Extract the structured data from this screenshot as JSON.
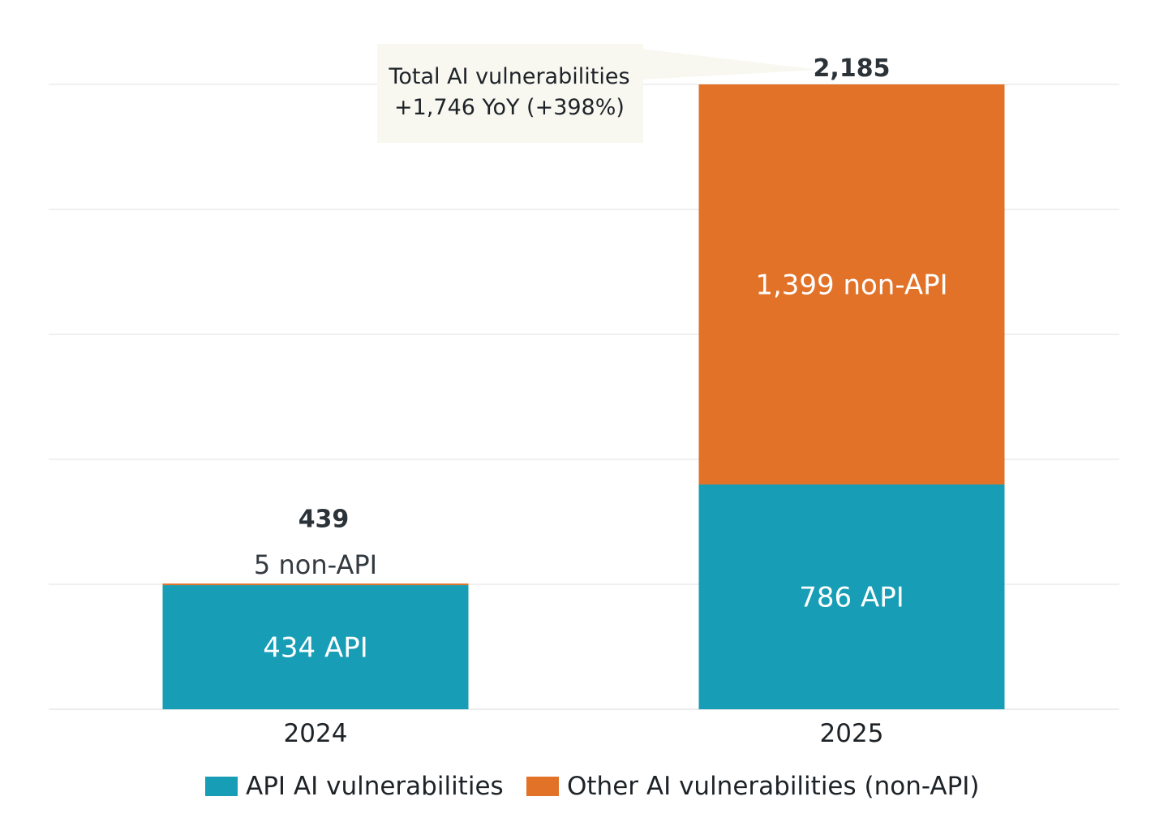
{
  "chart_data": {
    "type": "bar",
    "stacked": true,
    "categories": [
      "2024",
      "2025"
    ],
    "series": [
      {
        "name": "API AI vulnerabilities",
        "values": [
          434,
          786
        ],
        "color": "#189db6",
        "labels": [
          "434 API",
          "786 API"
        ]
      },
      {
        "name": "Other AI vulnerabilities (non-API)",
        "values": [
          5,
          1399
        ],
        "color": "#e17228",
        "labels": [
          "5 non-API",
          "1,399 non-API"
        ]
      }
    ],
    "totals": [
      "439",
      "2,185"
    ],
    "annotation": {
      "lines": [
        "Total AI vulnerabilities",
        "+1,746 YoY (+398%)"
      ],
      "background": "#f8f7f0"
    },
    "ylim": [
      0,
      2500
    ],
    "grid": true,
    "legend": "bottom-center",
    "title": "",
    "xlabel": "",
    "ylabel": ""
  }
}
